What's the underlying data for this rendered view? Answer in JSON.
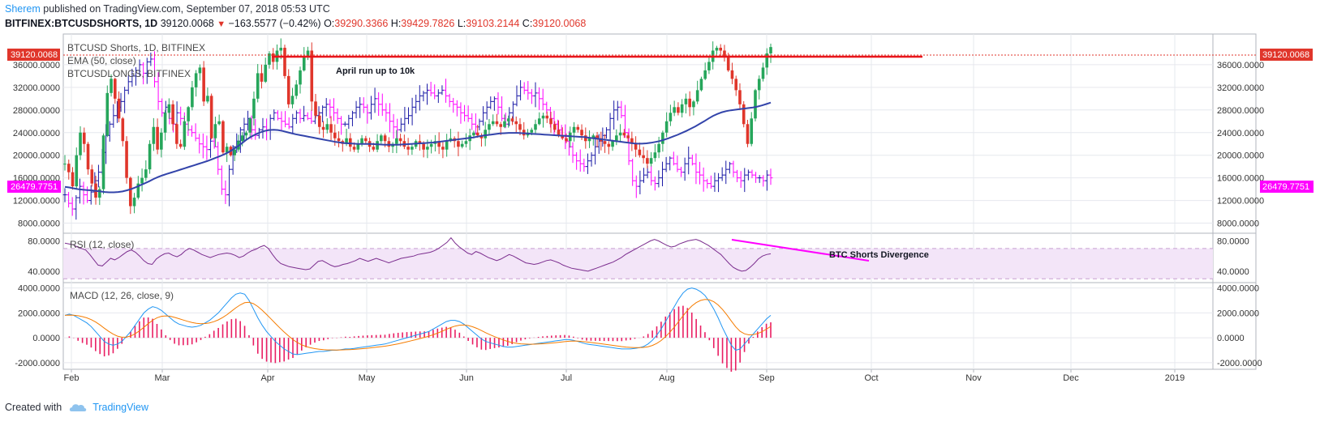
{
  "header": {
    "author": "Sherem",
    "published_text": " published on TradingView.com, September 07, 2018 05:53 UTC"
  },
  "symbol_line": {
    "symbol": "BITFINEX:BTCUSDSHORTS, 1D",
    "price": "39120.0068",
    "change": "−163.5577 (−0.42%)",
    "open_label": "O:",
    "open": "39290.3366",
    "high_label": "H:",
    "high": "39429.7826",
    "low_label": "L:",
    "low": "39103.2144",
    "close_label": "C:",
    "close": "39120.0068"
  },
  "legend": {
    "main": "BTCUSD Shorts, 1D, BITFINEX",
    "ema": "EMA (50, close)",
    "longs": "BTCUSDLONGS, BITFINEX"
  },
  "annotations": {
    "april": "April run up to 10k",
    "divergence": "BTC Shorts Divergence"
  },
  "rsi_label": "RSI (12, close)",
  "macd_label": "MACD (12, 26, close, 9)",
  "badges": {
    "last_price": "39120.0068",
    "longs_price": "26479.7751"
  },
  "footer": {
    "created_with": "Created with",
    "brand": "TradingView"
  },
  "colors": {
    "up": "#26a65b",
    "down": "#e0362b",
    "longs": "#1a1aa6",
    "ema": "#3344aa",
    "rsi": "#7b2d8e",
    "rsi_band": "#f3e5f8",
    "macd": "#2196f3",
    "signal": "#f57c00",
    "hist": "#e91e63",
    "magenta": "#ff00ff",
    "red_line": "#e8151b"
  },
  "chart_data": {
    "type": "candlestick",
    "price_panel": {
      "y_ticks": [
        "36000.0000",
        "32000.0000",
        "28000.0000",
        "24000.0000",
        "20000.0000",
        "16000.0000",
        "12000.0000",
        "8000.0000"
      ],
      "y_tick_values": [
        36000,
        32000,
        28000,
        24000,
        20000,
        16000,
        12000,
        8000
      ],
      "ylim": [
        6500,
        41000
      ],
      "series": [
        {
          "name": "BTCUSD Shorts",
          "kind": "candles",
          "last": 39120.0068,
          "closes": [
            18500,
            17000,
            14500,
            20000,
            24000,
            22000,
            17500,
            15000,
            12500,
            14000,
            23500,
            31000,
            33500,
            30000,
            26500,
            22500,
            16000,
            11000,
            12500,
            15000,
            16000,
            17500,
            22000,
            25000,
            21000,
            24000,
            27500,
            29000,
            25500,
            22000,
            21500,
            26000,
            28500,
            32000,
            34500,
            35500,
            29500,
            30500,
            23000,
            25500,
            26000,
            20500,
            21500,
            20000,
            21000,
            22500,
            23500,
            24000,
            26500,
            30000,
            34500,
            33000,
            36000,
            38000,
            36500,
            38500,
            39000,
            34000,
            29000,
            30500,
            32500,
            35000,
            37500,
            38500,
            29500,
            27000,
            25000,
            24500,
            25500,
            24000,
            23000,
            22500,
            22000,
            23000,
            21500,
            21000,
            22000,
            23000,
            22500,
            21500,
            21000,
            22500,
            23500,
            22500,
            21500,
            22000,
            23000,
            22500,
            21500,
            21000,
            21500,
            22500,
            22000,
            21000,
            21500,
            22000,
            22500,
            21500,
            21000,
            22500,
            23000,
            22500,
            21500,
            22000,
            22500,
            23500,
            24000,
            23500,
            23000,
            24500,
            25500,
            26000,
            25500,
            25000,
            26000,
            26500,
            26000,
            25500,
            24500,
            23500,
            24000,
            24500,
            25500,
            26500,
            27000,
            26500,
            25500,
            24500,
            23500,
            23000,
            22500,
            24000,
            25000,
            24500,
            23500,
            22500,
            23000,
            23500,
            23000,
            22500,
            22000,
            21500,
            22500,
            23500,
            24000,
            23500,
            23000,
            22000,
            21000,
            20000,
            19500,
            18500,
            19500,
            20500,
            22000,
            24000,
            26000,
            27500,
            28500,
            27500,
            29000,
            30000,
            28500,
            29500,
            31500,
            33500,
            35000,
            36500,
            38500,
            39000,
            38500,
            37500,
            35000,
            33500,
            31500,
            29000,
            25500,
            22000,
            26500,
            31500,
            33500,
            35500,
            38000,
            39120
          ]
        },
        {
          "name": "BTCUSDLONGS",
          "kind": "ohlc",
          "closes": [
            13000,
            11500,
            10500,
            12500,
            14500,
            13000,
            12000,
            13500,
            15500,
            17000,
            20500,
            23500,
            25500,
            27000,
            28500,
            29500,
            31500,
            33000,
            34000,
            35000,
            36000,
            34500,
            36500,
            37000,
            33000,
            29500,
            27500,
            28500,
            26500,
            25500,
            27500,
            26500,
            25500,
            24500,
            24000,
            23000,
            22000,
            21500,
            21000,
            22500,
            21500,
            17500,
            14000,
            13000,
            17500,
            21500,
            22500,
            24500,
            25500,
            26500,
            24500,
            23500,
            24500,
            25000,
            24500,
            26500,
            27500,
            26500,
            26000,
            25500,
            25000,
            26500,
            27500,
            26500,
            27000,
            26500,
            26000,
            27000,
            27500,
            28500,
            29000,
            28500,
            27500,
            26500,
            25500,
            25500,
            26500,
            27500,
            28500,
            29000,
            28500,
            27500,
            29000,
            30000,
            29000,
            28000,
            27500,
            26000,
            25000,
            24500,
            25500,
            26500,
            27000,
            28500,
            29500,
            30500,
            31000,
            31500,
            31000,
            30500,
            31000,
            31500,
            30500,
            29500,
            29000,
            28500,
            27500,
            27000,
            26500,
            25500,
            25000,
            26000,
            27500,
            28500,
            29500,
            30000,
            28500,
            26500,
            25500,
            27500,
            29000,
            30500,
            32000,
            31500,
            31000,
            30500,
            31000,
            30000,
            29000,
            28000,
            26500,
            25500,
            24500,
            23500,
            22500,
            21500,
            20000,
            19000,
            18500,
            18000,
            19000,
            20000,
            21500,
            22500,
            23500,
            24500,
            26500,
            28000,
            28500,
            27000,
            24000,
            19000,
            15500,
            14500,
            15500,
            16500,
            17000,
            15500,
            15000,
            16000,
            17500,
            18500,
            19500,
            18500,
            17500,
            17000,
            18500,
            19500,
            18500,
            17000,
            16500,
            15500,
            15000,
            14500,
            15500,
            16000,
            16500,
            17500,
            18500,
            17000,
            16000,
            15500,
            16500,
            17000,
            16500,
            16000,
            16000,
            15500,
            16500,
            16000
          ]
        },
        {
          "name": "EMA (50, close)",
          "kind": "line",
          "values": [
            14400,
            14300,
            14150,
            14000,
            13900,
            13850,
            13800,
            13700,
            13600,
            13500,
            13450,
            13450,
            13500,
            13600,
            13800,
            14050,
            14350,
            14700,
            15050,
            15400,
            15800,
            16150,
            16450,
            16700,
            16950,
            17200,
            17450,
            17700,
            17950,
            18200,
            18450,
            18700,
            18950,
            19250,
            19550,
            19850,
            20200,
            20600,
            21100,
            21600,
            22200,
            22800,
            23300,
            23700,
            24050,
            24300,
            24450,
            24500,
            24450,
            24300,
            24100,
            23900,
            23700,
            23550,
            23400,
            23250,
            23100,
            22950,
            22800,
            22650,
            22500,
            22350,
            22250,
            22150,
            22100,
            22050,
            22000,
            22000,
            22000,
            22000,
            21950,
            21900,
            21850,
            21850,
            21850,
            21850,
            21900,
            21950,
            22000,
            22050,
            22100,
            22150,
            22200,
            22250,
            22350,
            22450,
            22550,
            22650,
            22750,
            22850,
            22950,
            23050,
            23150,
            23300,
            23450,
            23550,
            23650,
            23750,
            23850,
            23900,
            23950,
            23950,
            23950,
            23900,
            23850,
            23800,
            23750,
            23700,
            23650,
            23600,
            23550,
            23500,
            23450,
            23400,
            23350,
            23300,
            23250,
            23200,
            23100,
            23000,
            22900,
            22800,
            22700,
            22600,
            22500,
            22400,
            22300,
            22200,
            22100,
            22050,
            22050,
            22100,
            22200,
            22350,
            22500,
            22750,
            23000,
            23300,
            23600,
            23950,
            24300,
            24700,
            25100,
            25550,
            26000,
            26500,
            26950,
            27300,
            27600,
            27800,
            27950,
            28050,
            28150,
            28250,
            28350,
            28450,
            28600,
            28800,
            29050,
            29300
          ]
        }
      ]
    },
    "rsi_panel": {
      "y_ticks": [
        "80.0000",
        "40.0000"
      ],
      "y_tick_values": [
        80,
        40
      ],
      "ylim": [
        26,
        88
      ],
      "band": [
        70,
        30
      ],
      "values": [
        77,
        76,
        75,
        72,
        70,
        68,
        62,
        55,
        48,
        47,
        52,
        57,
        55,
        58,
        62,
        66,
        68,
        65,
        60,
        54,
        50,
        49,
        56,
        60,
        63,
        64,
        61,
        59,
        62,
        67,
        70,
        68,
        65,
        62,
        60,
        58,
        60,
        62,
        63,
        64,
        63,
        61,
        58,
        60,
        64,
        67,
        69,
        72,
        74,
        70,
        62,
        55,
        50,
        48,
        46,
        45,
        44,
        43,
        42,
        43,
        48,
        53,
        54,
        51,
        48,
        46,
        47,
        49,
        50,
        52,
        54,
        57,
        55,
        53,
        55,
        57,
        55,
        53,
        51,
        53,
        55,
        57,
        58,
        59,
        60,
        62,
        63,
        64,
        65,
        67,
        70,
        74,
        78,
        84,
        77,
        72,
        68,
        64,
        62,
        66,
        64,
        61,
        58,
        56,
        54,
        56,
        59,
        62,
        60,
        57,
        54,
        51,
        50,
        49,
        50,
        52,
        54,
        55,
        53,
        51,
        48,
        46,
        44,
        43,
        42,
        41,
        40,
        42,
        44,
        46,
        48,
        50,
        52,
        55,
        58,
        62,
        65,
        68,
        71,
        74,
        77,
        80,
        82,
        80,
        77,
        74,
        72,
        73,
        76,
        78,
        80,
        81,
        82,
        80,
        77,
        74,
        70,
        66,
        62,
        56,
        50,
        45,
        42,
        40,
        41,
        45,
        50,
        56,
        60,
        62,
        63
      ]
    },
    "macd_panel": {
      "y_ticks": [
        "4000.0000",
        "2000.0000",
        "0.0000",
        "-2000.0000"
      ],
      "y_tick_values": [
        4000,
        2000,
        0,
        -2000
      ],
      "ylim": [
        -2400,
        4300
      ],
      "macd": [
        1800,
        1900,
        1800,
        1600,
        1400,
        1200,
        900,
        500,
        100,
        -300,
        -500,
        -600,
        -500,
        -300,
        100,
        500,
        1000,
        1500,
        2000,
        2300,
        2500,
        2400,
        2200,
        1900,
        1600,
        1300,
        1100,
        1000,
        900,
        850,
        900,
        1000,
        1200,
        1400,
        1700,
        2000,
        2400,
        2800,
        3200,
        3500,
        3600,
        3500,
        3000,
        2300,
        1600,
        1000,
        500,
        100,
        -300,
        -600,
        -900,
        -1100,
        -1300,
        -1350,
        -1300,
        -1250,
        -1200,
        -1150,
        -1100,
        -1100,
        -1050,
        -1000,
        -1000,
        -950,
        -900,
        -900,
        -850,
        -800,
        -750,
        -700,
        -650,
        -600,
        -550,
        -500,
        -400,
        -300,
        -200,
        -100,
        0,
        100,
        200,
        300,
        400,
        500,
        700,
        900,
        1100,
        1300,
        1400,
        1400,
        1300,
        1100,
        800,
        500,
        200,
        -100,
        -300,
        -400,
        -500,
        -600,
        -700,
        -750,
        -750,
        -700,
        -650,
        -600,
        -550,
        -500,
        -450,
        -400,
        -350,
        -300,
        -250,
        -200,
        -150,
        -150,
        -200,
        -300,
        -400,
        -500,
        -550,
        -600,
        -650,
        -700,
        -750,
        -800,
        -850,
        -900,
        -900,
        -900,
        -850,
        -800,
        -700,
        -500,
        -200,
        200,
        700,
        1300,
        1900,
        2500,
        3100,
        3600,
        3900,
        4000,
        3900,
        3700,
        3400,
        2900,
        2300,
        1600,
        800,
        100,
        -600,
        -1000,
        -900,
        -500,
        -100,
        300,
        700,
        1100,
        1500,
        1800
      ]
    },
    "x_axis": {
      "labels": [
        "Feb",
        "Mar",
        "Apr",
        "May",
        "Jun",
        "Jul",
        "Aug",
        "Sep",
        "Oct",
        "Nov",
        "Dec",
        "2019"
      ]
    }
  }
}
